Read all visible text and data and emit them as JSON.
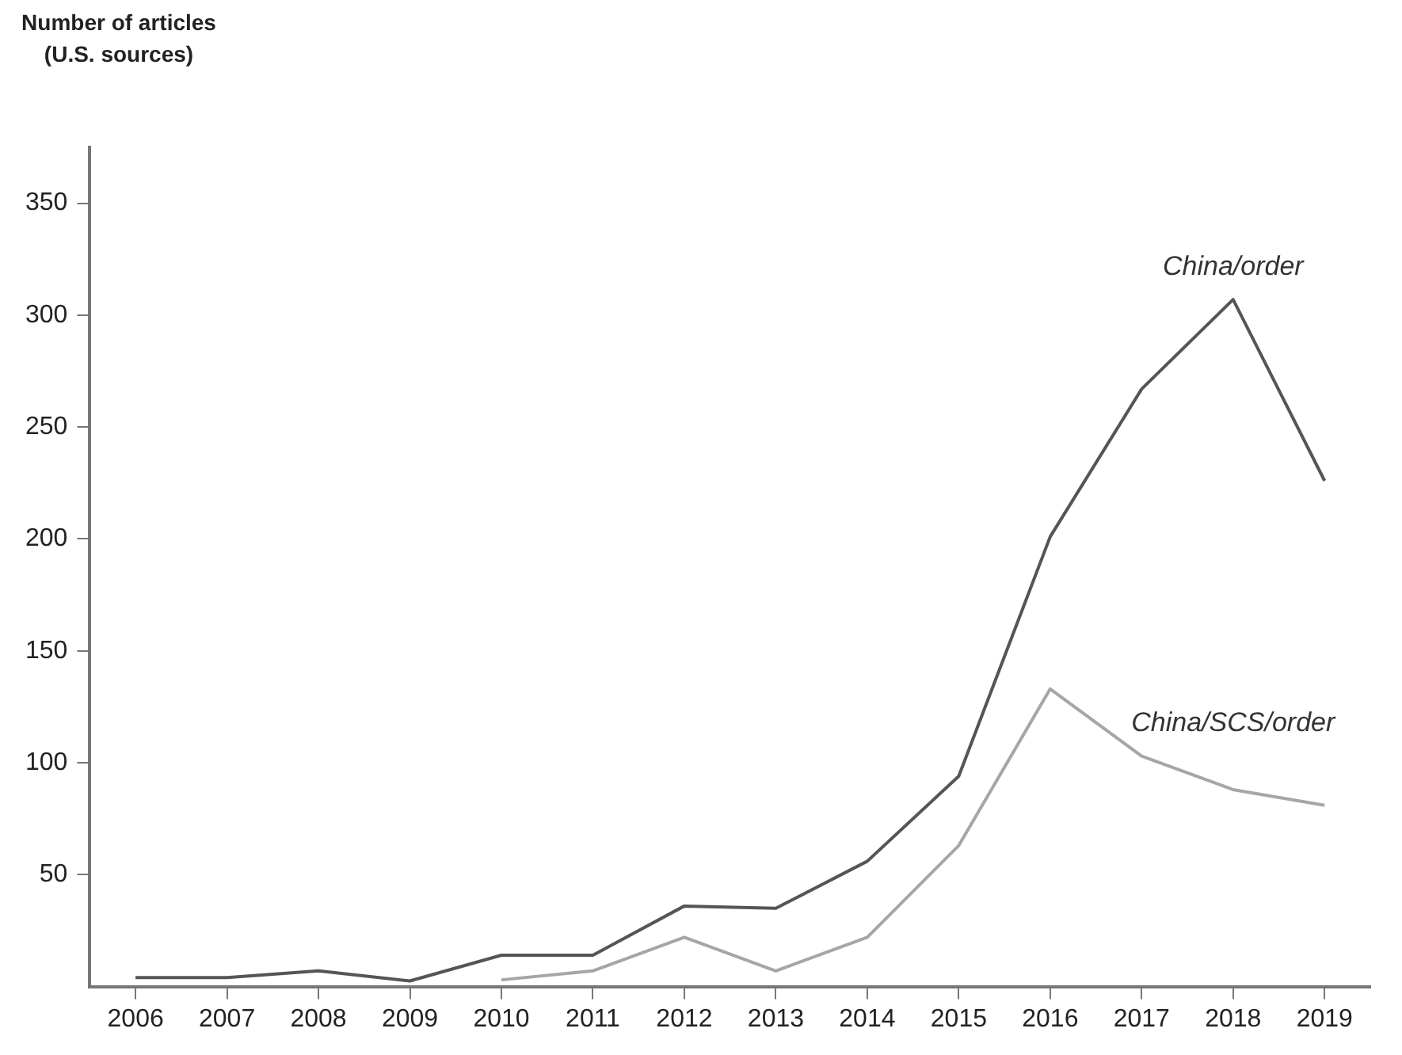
{
  "chart_data": {
    "type": "line",
    "ylabel": "Number of articles (U.S. sources)",
    "categories": [
      "2006",
      "2007",
      "2008",
      "2009",
      "2010",
      "2011",
      "2012",
      "2013",
      "2014",
      "2015",
      "2016",
      "2017",
      "2018",
      "2019"
    ],
    "series": [
      {
        "name": "China/order",
        "color": "#555555",
        "values": [
          4,
          4,
          7,
          2.5,
          14,
          14,
          36,
          35,
          56,
          94,
          201,
          267,
          307,
          226
        ]
      },
      {
        "name": "China/SCS/order",
        "color": "#a6a6a6",
        "values": [
          null,
          null,
          null,
          null,
          3,
          7,
          22,
          7,
          22,
          63,
          133,
          103,
          88,
          81
        ]
      }
    ],
    "ylim": [
      0,
      375
    ],
    "yticks": [
      50,
      100,
      150,
      200,
      250,
      300,
      350
    ],
    "grid": false,
    "legend": false,
    "marker": "none",
    "line_style": "solid"
  }
}
